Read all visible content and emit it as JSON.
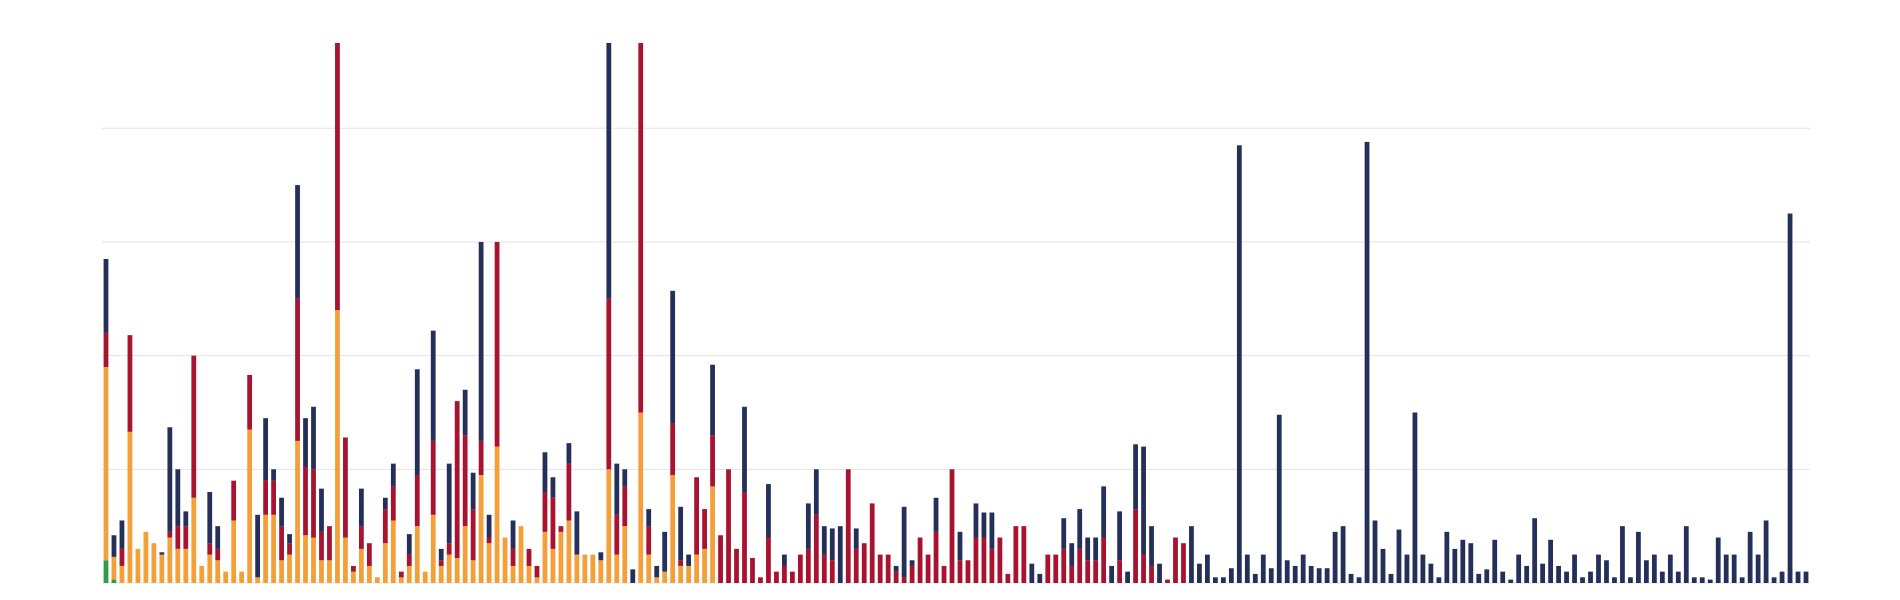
{
  "chart_data": {
    "type": "stacked-bar",
    "categories": [
      null,
      null,
      null,
      null,
      null,
      null,
      null,
      null,
      null,
      null,
      null,
      null,
      null,
      null,
      null,
      null,
      null,
      null,
      null,
      null,
      null,
      null,
      null,
      null,
      null,
      null,
      null,
      null,
      null,
      null,
      null,
      null,
      null,
      null,
      null,
      null,
      null,
      null,
      null,
      null,
      null,
      null,
      null,
      null,
      null,
      null,
      null,
      null,
      null,
      null,
      null,
      null,
      null,
      null,
      null,
      null,
      null,
      null,
      null,
      null,
      null,
      null,
      null,
      null,
      null,
      null,
      null,
      null,
      null,
      null,
      null,
      null,
      null,
      null,
      null,
      null,
      null,
      null,
      null,
      null,
      null,
      null,
      null,
      null,
      null,
      null,
      null,
      null,
      null,
      null,
      null,
      null,
      null,
      null,
      null,
      null,
      null,
      null,
      null,
      null,
      null,
      null,
      null,
      null,
      null,
      null,
      null,
      null,
      null,
      null,
      null,
      null,
      null,
      null,
      null,
      null,
      null,
      null,
      null,
      null,
      null,
      null,
      null,
      null,
      null,
      null,
      null,
      null,
      null,
      null,
      null,
      null,
      null,
      null,
      null,
      null,
      null,
      null,
      null,
      null,
      null,
      null,
      null,
      null,
      null,
      null,
      null,
      null,
      null,
      null,
      null,
      null,
      null,
      null,
      null,
      null,
      null,
      null,
      null,
      null,
      null,
      null,
      null,
      null,
      null,
      null,
      null,
      null,
      null,
      null,
      null,
      null,
      null,
      null,
      null,
      null,
      null,
      null,
      null,
      null,
      null,
      null,
      null,
      null,
      null,
      null,
      null,
      null,
      null,
      null,
      null,
      null,
      null,
      null,
      null,
      null,
      null,
      null,
      null,
      null,
      null,
      null,
      null,
      null,
      null,
      null,
      null,
      null,
      null,
      null,
      null,
      null,
      null,
      null
    ],
    "series": [
      {
        "color": "#2e9b48",
        "values": [
          20,
          3,
          0,
          0,
          0,
          0,
          0,
          0,
          0,
          0,
          0,
          0,
          0,
          0,
          0,
          0,
          0,
          0,
          0,
          0,
          0,
          0,
          0,
          0,
          0,
          0,
          0,
          0,
          0,
          0,
          0,
          0,
          0,
          0,
          0,
          0,
          0,
          0,
          0,
          0,
          0,
          0,
          0,
          0,
          0,
          0,
          0,
          0,
          0,
          0,
          0,
          0,
          0,
          0,
          0,
          0,
          0,
          0,
          0,
          0,
          0,
          0,
          0,
          0,
          0,
          0,
          0,
          0,
          0,
          0,
          0,
          0,
          0,
          0,
          0,
          0,
          0,
          0,
          0,
          0,
          0,
          0,
          0,
          0,
          0,
          0,
          0,
          0,
          0,
          0,
          0,
          0,
          0,
          0,
          0,
          0,
          0,
          0,
          0,
          0,
          0,
          0,
          0,
          0,
          0,
          0,
          0,
          0,
          0,
          0,
          0,
          0,
          0,
          0,
          0,
          0,
          0,
          0,
          0,
          0,
          0,
          0,
          0,
          0,
          0,
          0,
          0,
          0,
          0,
          0,
          0,
          0,
          0,
          0,
          0,
          0,
          0,
          0,
          0,
          0,
          0,
          0,
          0,
          0,
          0,
          0,
          0,
          0,
          0,
          0,
          0,
          0,
          0,
          0,
          0,
          0,
          0,
          0,
          0,
          0,
          0,
          0,
          0,
          0,
          0,
          0,
          0,
          0,
          0,
          0,
          0,
          0,
          0,
          0,
          0,
          0,
          0,
          0,
          0,
          0,
          0,
          0,
          0,
          0,
          0,
          0,
          0,
          0,
          0,
          0,
          0,
          0,
          0,
          0,
          0,
          0,
          0,
          0,
          0,
          0,
          0,
          0,
          0,
          0,
          0,
          0,
          0,
          0,
          0,
          0,
          0,
          0,
          0,
          0
        ]
      },
      {
        "color": "#f4a03a",
        "values": [
          170,
          20,
          15,
          133,
          30,
          45,
          35,
          25,
          40,
          30,
          30,
          75,
          15,
          25,
          20,
          10,
          55,
          10,
          135,
          5,
          60,
          60,
          20,
          25,
          125,
          42,
          40,
          20,
          20,
          240,
          40,
          10,
          30,
          15,
          5,
          35,
          55,
          5,
          15,
          50,
          10,
          60,
          15,
          25,
          22,
          50,
          20,
          95,
          35,
          120,
          40,
          15,
          50,
          15,
          5,
          45,
          30,
          45,
          55,
          25,
          25,
          25,
          20,
          100,
          25,
          50,
          0,
          150,
          25,
          5,
          10,
          95,
          15,
          15,
          25,
          30,
          85,
          0,
          0,
          0,
          0,
          0,
          0,
          0,
          0,
          0,
          0,
          0,
          0,
          0,
          0,
          0,
          0,
          0,
          0,
          0,
          0,
          0,
          0,
          0,
          0,
          0,
          0,
          0,
          0,
          0,
          0,
          0,
          0,
          0,
          0,
          0,
          0,
          0,
          0,
          0,
          0,
          0,
          0,
          0,
          0,
          0,
          0,
          0,
          0,
          0,
          0,
          0,
          0,
          0,
          0,
          0,
          0,
          0,
          0,
          0,
          0,
          0,
          0,
          0,
          0,
          0,
          0,
          0,
          0,
          0,
          0,
          0,
          0,
          0,
          0,
          0,
          0,
          0,
          0,
          0,
          0,
          0,
          0,
          0,
          0,
          0,
          0,
          0,
          0,
          0,
          0,
          0,
          0,
          0,
          0,
          0,
          0,
          0,
          0,
          0,
          0,
          0,
          0,
          0,
          0,
          0,
          0,
          0,
          0,
          0,
          0,
          0,
          0,
          0,
          0,
          0,
          0,
          0,
          0,
          0,
          0,
          0,
          0,
          0,
          0,
          0,
          0,
          0,
          0,
          0,
          0,
          0,
          0,
          0,
          0,
          0,
          0,
          0
        ]
      },
      {
        "color": "#a8132f",
        "values": [
          30,
          0,
          15,
          85,
          0,
          0,
          0,
          0,
          5,
          20,
          20,
          125,
          0,
          10,
          10,
          0,
          35,
          0,
          48,
          0,
          30,
          30,
          30,
          10,
          125,
          60,
          60,
          25,
          30,
          235,
          88,
          5,
          20,
          20,
          0,
          30,
          30,
          5,
          10,
          45,
          0,
          65,
          5,
          10,
          138,
          80,
          45,
          30,
          5,
          180,
          0,
          15,
          0,
          15,
          10,
          35,
          45,
          5,
          50,
          0,
          0,
          0,
          0,
          150,
          35,
          35,
          0,
          325,
          25,
          0,
          0,
          45,
          5,
          0,
          68,
          35,
          45,
          42,
          100,
          30,
          80,
          22,
          5,
          40,
          10,
          15,
          10,
          25,
          30,
          60,
          25,
          20,
          0,
          100,
          30,
          35,
          70,
          25,
          25,
          10,
          5,
          15,
          40,
          25,
          45,
          15,
          100,
          20,
          20,
          40,
          40,
          30,
          40,
          8,
          50,
          50,
          0,
          0,
          25,
          25,
          30,
          15,
          30,
          20,
          20,
          40,
          0,
          20,
          0,
          65,
          25,
          15,
          0,
          3,
          40,
          35,
          0,
          0,
          0,
          0,
          0,
          0,
          0,
          0,
          0,
          0,
          0,
          0,
          0,
          0,
          0,
          0,
          0,
          0,
          0,
          0,
          0,
          0,
          0,
          0,
          0,
          0,
          0,
          0,
          0,
          0,
          0,
          0,
          0,
          0,
          0,
          0,
          0,
          0,
          0,
          0,
          0,
          0,
          0,
          0,
          0,
          0,
          0,
          0,
          0,
          0,
          0,
          0,
          0,
          0,
          0,
          0,
          0,
          0,
          0,
          0,
          0,
          0,
          0,
          0,
          0,
          0,
          0,
          0,
          0,
          0,
          0,
          0,
          0,
          0,
          0,
          0,
          0,
          0
        ]
      },
      {
        "color": "#25305a",
        "values": [
          65,
          19,
          25,
          0,
          0,
          0,
          0,
          2,
          92,
          50,
          13,
          0,
          0,
          45,
          20,
          0,
          0,
          0,
          0,
          55,
          55,
          10,
          25,
          8,
          100,
          43,
          55,
          38,
          0,
          0,
          0,
          0,
          33,
          0,
          0,
          10,
          20,
          0,
          18,
          93,
          0,
          97,
          10,
          70,
          0,
          40,
          32,
          175,
          20,
          0,
          0,
          25,
          0,
          0,
          0,
          35,
          18,
          0,
          18,
          38,
          0,
          0,
          7,
          225,
          45,
          15,
          12,
          0,
          15,
          10,
          35,
          117,
          47,
          10,
          0,
          0,
          62,
          0,
          0,
          0,
          75,
          0,
          0,
          47,
          0,
          10,
          0,
          0,
          40,
          40,
          25,
          28,
          50,
          0,
          18,
          0,
          0,
          0,
          0,
          5,
          62,
          5,
          0,
          0,
          30,
          0,
          0,
          25,
          0,
          30,
          22,
          32,
          0,
          0,
          0,
          0,
          17,
          8,
          0,
          0,
          27,
          20,
          35,
          20,
          20,
          45,
          15,
          43,
          10,
          57,
          95,
          35,
          17,
          0,
          0,
          0,
          50,
          17,
          25,
          5,
          5,
          13,
          385,
          25,
          8,
          25,
          13,
          148,
          20,
          15,
          25,
          15,
          13,
          13,
          45,
          50,
          8,
          5,
          388,
          55,
          30,
          8,
          47,
          25,
          150,
          25,
          17,
          5,
          45,
          30,
          38,
          35,
          8,
          12,
          38,
          10,
          3,
          25,
          15,
          57,
          17,
          38,
          15,
          10,
          25,
          5,
          10,
          25,
          20,
          5,
          50,
          5,
          45,
          20,
          25,
          10,
          25,
          10,
          50,
          5,
          5,
          3,
          40,
          25,
          25,
          5,
          45,
          25,
          55,
          5,
          10,
          325,
          10,
          10
        ]
      }
    ],
    "ylim": [
      0,
      475
    ],
    "yticks": [
      0,
      100,
      200,
      300,
      400
    ],
    "grid": true
  }
}
